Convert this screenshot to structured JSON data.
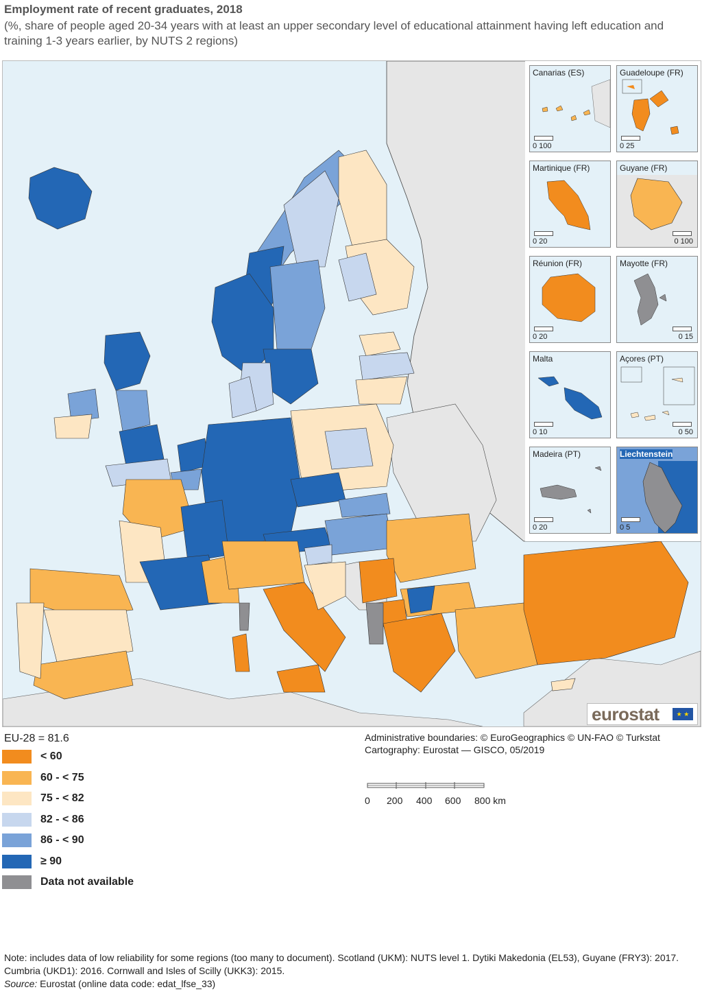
{
  "title": "Employment rate of recent graduates, 2018",
  "subtitle": "(%, share of people aged 20-34 years with at least an upper secondary level of educational attainment having left education and training 1-3 years earlier, by NUTS 2 regions)",
  "colors": {
    "lt60": "#f28c1e",
    "60to75": "#f9b552",
    "75to82": "#fde6c3",
    "82to86": "#c7d7ee",
    "86to90": "#7aa3d8",
    "gte90": "#2367b5",
    "na": "#8f8f92",
    "sea": "#e4f1f8",
    "nonEU": "#e6e6e6"
  },
  "legend": {
    "eu_average": "EU-28 = 81.6",
    "items": [
      {
        "label": "< 60",
        "color": "#f28c1e"
      },
      {
        "label": "60 - < 75",
        "color": "#f9b552"
      },
      {
        "label": "75 - < 82",
        "color": "#fde6c3"
      },
      {
        "label": "82 - < 86",
        "color": "#c7d7ee"
      },
      {
        "label": "86 - < 90",
        "color": "#7aa3d8"
      },
      {
        "label": "≥ 90",
        "color": "#2367b5"
      },
      {
        "label": "Data not available",
        "color": "#8f8f92"
      }
    ]
  },
  "insets": [
    {
      "name": "Canarias (ES)",
      "scale": "0  100"
    },
    {
      "name": "Guadeloupe (FR)",
      "scale": "0    25"
    },
    {
      "name": "Martinique (FR)",
      "scale": "0      20"
    },
    {
      "name": "Guyane (FR)",
      "scale": "0  100"
    },
    {
      "name": "Réunion (FR)",
      "scale": "0      20"
    },
    {
      "name": "Mayotte (FR)",
      "scale": "0      15"
    },
    {
      "name": "Malta",
      "scale": "0      10"
    },
    {
      "name": "Açores (PT)",
      "scale": "0  50"
    },
    {
      "name": "Madeira (PT)",
      "scale": "0      20"
    },
    {
      "name": "Liechtenstein",
      "scale": "0    5"
    }
  ],
  "credits": {
    "line1": "Administrative boundaries: © EuroGeographics © UN-FAO © Turkstat",
    "line2": "Cartography: Eurostat — GISCO, 05/2019"
  },
  "scale_bar": {
    "ticks": [
      "0",
      "200",
      "400",
      "600",
      "800 km"
    ]
  },
  "logo": "eurostat",
  "note": "Note: includes data of low reliability for some regions (too many to document). Scotland (UKM): NUTS level 1. Dytiki Makedonia (EL53), Guyane (FRY3): 2017. Cumbria (UKD1): 2016. Cornwall and Isles of Scilly (UKK3): 2015.",
  "source_label": "Source:",
  "source_text": " Eurostat (online data code: edat_lfse_33)"
}
